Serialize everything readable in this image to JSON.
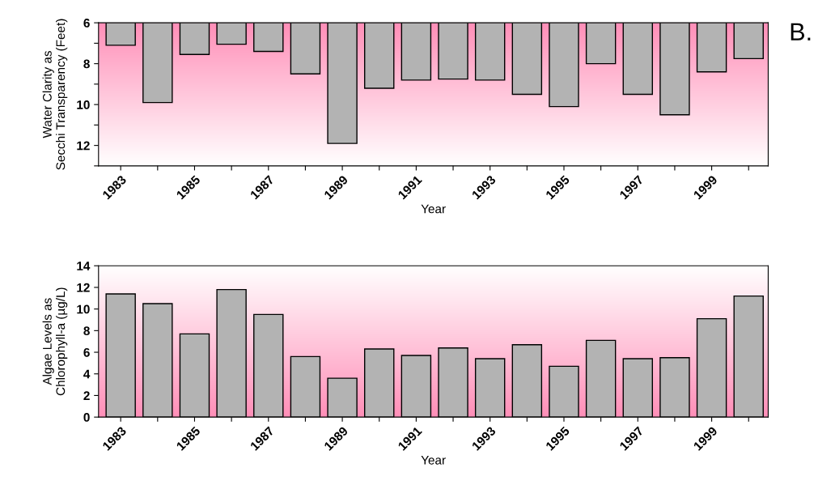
{
  "chart_data": [
    {
      "type": "bar",
      "xlabel": "Year",
      "ylabel": "Water Clarity as\nSecchi Transparency (Feet)",
      "categories": [
        "1983",
        null,
        "1985",
        null,
        "1987",
        null,
        "1989",
        null,
        "1991",
        null,
        "1993",
        null,
        "1995",
        null,
        "1997",
        null,
        "1999",
        null
      ],
      "series": [
        {
          "color": "#b3b3b3",
          "values": [
            7.1,
            9.9,
            7.55,
            7.05,
            7.4,
            8.5,
            11.9,
            9.2,
            8.8,
            8.75,
            8.8,
            9.5,
            10.1,
            8.0,
            9.5,
            10.5,
            8.4,
            7.75
          ]
        }
      ],
      "ylim": [
        13,
        6
      ],
      "yticks": [
        6,
        {
          "value": 7,
          "label": null
        },
        8,
        {
          "value": 9,
          "label": null
        },
        10,
        {
          "value": 11,
          "label": null
        },
        12,
        {
          "value": 13,
          "label": null
        }
      ],
      "grid": false,
      "annotations": [
        "B."
      ]
    },
    {
      "type": "bar",
      "xlabel": "Year",
      "ylabel": "Algae Levels as\nChlorophyll-a (µg/L)",
      "categories": [
        "1983",
        null,
        "1985",
        null,
        "1987",
        null,
        "1989",
        null,
        "1991",
        null,
        "1993",
        null,
        "1995",
        null,
        "1997",
        null,
        "1999",
        null
      ],
      "series": [
        {
          "color": "#b3b3b3",
          "values": [
            11.4,
            10.5,
            7.7,
            11.8,
            9.5,
            5.6,
            3.6,
            6.3,
            5.7,
            6.4,
            5.4,
            6.7,
            4.7,
            7.1,
            5.4,
            5.5,
            9.1,
            11.2
          ]
        }
      ],
      "ylim": [
        0,
        14
      ],
      "yticks": [
        0,
        2,
        4,
        6,
        8,
        10,
        12,
        14
      ],
      "grid": false
    }
  ]
}
